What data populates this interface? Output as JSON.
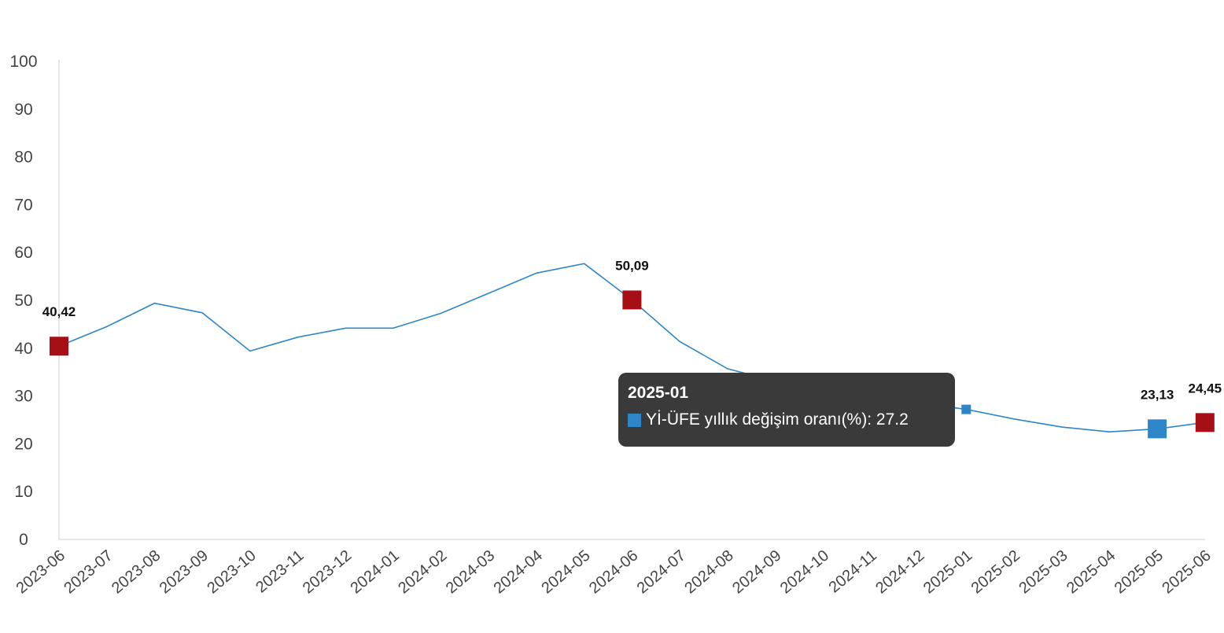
{
  "colors": {
    "line": "#2e86c8",
    "marker_highlight": "#a50f15",
    "marker_blue": "#2e86c8",
    "axis": "#dddddd",
    "tick_text": "#444444",
    "tooltip_bg": "#3a3a3a"
  },
  "chart_data": {
    "type": "line",
    "title": "",
    "xlabel": "",
    "ylabel": "",
    "ylim": [
      0,
      100
    ],
    "yticks": [
      0,
      10,
      20,
      30,
      40,
      50,
      60,
      70,
      80,
      90,
      100
    ],
    "grid": false,
    "categories": [
      "2023-06",
      "2023-07",
      "2023-08",
      "2023-09",
      "2023-10",
      "2023-11",
      "2023-12",
      "2024-01",
      "2024-02",
      "2024-03",
      "2024-04",
      "2024-05",
      "2024-06",
      "2024-07",
      "2024-08",
      "2024-09",
      "2024-10",
      "2024-11",
      "2024-12",
      "2025-01",
      "2025-02",
      "2025-03",
      "2025-04",
      "2025-05",
      "2025-06"
    ],
    "series": [
      {
        "name": "Yİ-ÜFE yıllık değişim oranı(%)",
        "values": [
          40.42,
          44.5,
          49.4,
          47.4,
          39.4,
          42.3,
          44.2,
          44.2,
          47.3,
          51.5,
          55.7,
          57.7,
          50.09,
          41.4,
          35.7,
          33.1,
          32.2,
          29.5,
          28.5,
          27.2,
          25.2,
          23.5,
          22.5,
          23.13,
          24.45
        ]
      }
    ],
    "annotations": [
      {
        "category": "2023-06",
        "label": "40,42",
        "marker": "highlight"
      },
      {
        "category": "2024-06",
        "label": "50,09",
        "marker": "highlight"
      },
      {
        "category": "2025-05",
        "label": "23,13",
        "marker": "blue"
      },
      {
        "category": "2025-06",
        "label": "24,45",
        "marker": "highlight"
      }
    ],
    "hovered_category": "2025-01"
  },
  "tooltip": {
    "title": "2025-01",
    "series_label": "Yİ-ÜFE yıllık değişim oranı(%): 27.2"
  }
}
